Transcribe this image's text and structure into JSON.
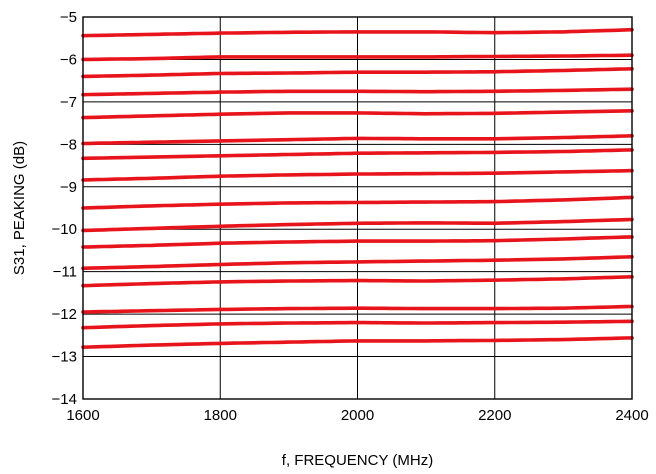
{
  "chart_data": {
    "type": "line",
    "title": "",
    "xlabel": "f, FREQUENCY (MHz)",
    "ylabel": "S31, PEAKING (dB)",
    "xlim": [
      1600,
      2400
    ],
    "ylim": [
      -14,
      -5
    ],
    "xticks": [
      1600,
      1800,
      2000,
      2200,
      2400
    ],
    "yticks": [
      -14,
      -13,
      -12,
      -11,
      -10,
      -9,
      -8,
      -7,
      -6,
      -5
    ],
    "xtick_labels": [
      "1600",
      "1800",
      "2000",
      "2200",
      "2400"
    ],
    "ytick_labels": [
      "−14",
      "−13",
      "−12",
      "−11",
      "−10",
      "−9",
      "−8",
      "−7",
      "−6",
      "−5"
    ],
    "grid": true,
    "line_color": "#e8141b",
    "x": [
      1600,
      1700,
      1800,
      1900,
      2000,
      2100,
      2200,
      2300,
      2400
    ],
    "series": [
      {
        "values": [
          -5.44,
          -5.41,
          -5.38,
          -5.36,
          -5.35,
          -5.35,
          -5.37,
          -5.35,
          -5.3
        ]
      },
      {
        "values": [
          -6.0,
          -5.98,
          -5.94,
          -5.94,
          -5.94,
          -5.94,
          -5.93,
          -5.92,
          -5.9
        ]
      },
      {
        "values": [
          -6.4,
          -6.37,
          -6.33,
          -6.32,
          -6.3,
          -6.3,
          -6.29,
          -6.26,
          -6.22
        ]
      },
      {
        "values": [
          -6.83,
          -6.8,
          -6.77,
          -6.75,
          -6.75,
          -6.76,
          -6.75,
          -6.73,
          -6.7
        ]
      },
      {
        "values": [
          -7.37,
          -7.33,
          -7.29,
          -7.26,
          -7.26,
          -7.28,
          -7.27,
          -7.24,
          -7.21
        ]
      },
      {
        "values": [
          -7.98,
          -7.95,
          -7.92,
          -7.89,
          -7.86,
          -7.87,
          -7.87,
          -7.84,
          -7.8
        ]
      },
      {
        "values": [
          -8.33,
          -8.3,
          -8.27,
          -8.24,
          -8.21,
          -8.2,
          -8.19,
          -8.17,
          -8.13
        ]
      },
      {
        "values": [
          -8.84,
          -8.8,
          -8.75,
          -8.72,
          -8.7,
          -8.69,
          -8.68,
          -8.65,
          -8.62
        ]
      },
      {
        "values": [
          -9.5,
          -9.45,
          -9.41,
          -9.38,
          -9.37,
          -9.36,
          -9.35,
          -9.31,
          -9.25
        ]
      },
      {
        "values": [
          -10.03,
          -9.98,
          -9.93,
          -9.89,
          -9.86,
          -9.85,
          -9.86,
          -9.82,
          -9.77
        ]
      },
      {
        "values": [
          -10.42,
          -10.38,
          -10.33,
          -10.3,
          -10.28,
          -10.28,
          -10.27,
          -10.23,
          -10.18
        ]
      },
      {
        "values": [
          -10.92,
          -10.88,
          -10.83,
          -10.79,
          -10.77,
          -10.75,
          -10.73,
          -10.7,
          -10.65
        ]
      },
      {
        "values": [
          -11.33,
          -11.28,
          -11.24,
          -11.22,
          -11.21,
          -11.22,
          -11.2,
          -11.17,
          -11.12
        ]
      },
      {
        "values": [
          -11.95,
          -11.92,
          -11.89,
          -11.87,
          -11.86,
          -11.87,
          -11.87,
          -11.86,
          -11.82
        ]
      },
      {
        "values": [
          -12.32,
          -12.27,
          -12.23,
          -12.21,
          -12.2,
          -12.21,
          -12.2,
          -12.19,
          -12.17
        ]
      },
      {
        "values": [
          -12.78,
          -12.73,
          -12.69,
          -12.66,
          -12.63,
          -12.63,
          -12.62,
          -12.6,
          -12.56
        ]
      }
    ]
  }
}
